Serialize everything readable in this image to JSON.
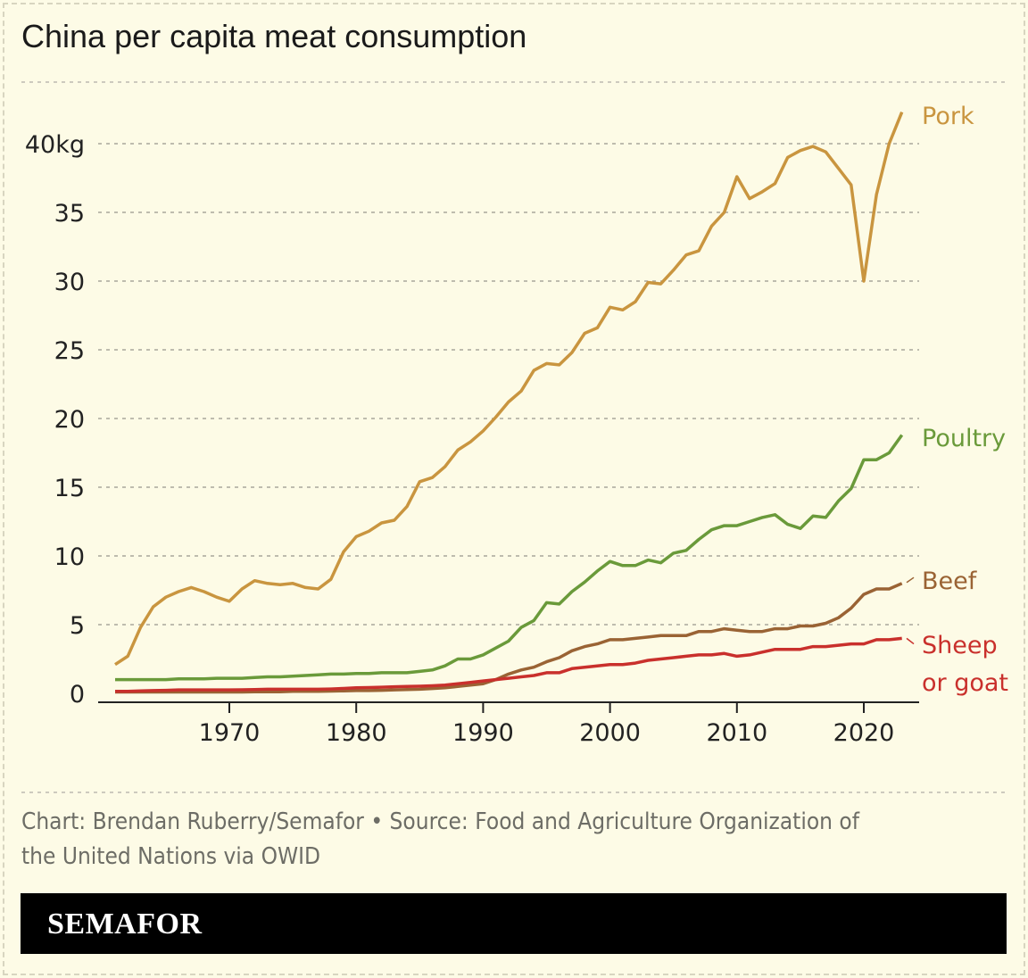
{
  "title": "China per capita meat consumption",
  "credit": "Chart: Brendan Ruberry/Semafor • Source: Food and Agriculture Organization of the United Nations via OWID",
  "brand": "SEMAFOR",
  "chart_data": {
    "type": "line",
    "title": "China per capita meat consumption",
    "xlim": [
      1961,
      2023
    ],
    "ylim": [
      0,
      40
    ],
    "x_ticks": [
      1970,
      1980,
      1990,
      2000,
      2010,
      2020
    ],
    "y_ticks": [
      0,
      5,
      10,
      15,
      20,
      25,
      30,
      35,
      40
    ],
    "y_tick_labels": [
      "0",
      "5",
      "10",
      "15",
      "20",
      "25",
      "30",
      "35",
      "40kg"
    ],
    "grid": true,
    "x_start": 1961,
    "series": [
      {
        "name": "Pork",
        "color": "#c9953f",
        "values": [
          2.1,
          2.7,
          4.8,
          6.3,
          7.0,
          7.4,
          7.7,
          7.4,
          7.0,
          6.7,
          7.6,
          8.2,
          8.0,
          7.9,
          8.0,
          7.7,
          7.6,
          8.3,
          10.3,
          11.4,
          11.8,
          12.4,
          12.6,
          13.6,
          15.4,
          15.7,
          16.5,
          17.7,
          18.3,
          19.1,
          20.1,
          21.2,
          22.0,
          23.5,
          24.0,
          23.9,
          24.8,
          26.2,
          26.6,
          28.1,
          27.9,
          28.5,
          29.9,
          29.8,
          30.8,
          31.9,
          32.2,
          34.0,
          35.0,
          37.6,
          36.0,
          36.5,
          37.1,
          39.0,
          39.5,
          39.8,
          39.4,
          38.2,
          37.0,
          30.0,
          36.3,
          40.0,
          42.3
        ]
      },
      {
        "name": "Poultry",
        "color": "#6a9a3a",
        "values": [
          1.0,
          1.0,
          1.0,
          1.0,
          1.0,
          1.05,
          1.05,
          1.05,
          1.1,
          1.1,
          1.1,
          1.15,
          1.2,
          1.2,
          1.25,
          1.3,
          1.35,
          1.4,
          1.4,
          1.45,
          1.45,
          1.5,
          1.5,
          1.5,
          1.6,
          1.7,
          2.0,
          2.5,
          2.5,
          2.8,
          3.3,
          3.8,
          4.8,
          5.3,
          6.6,
          6.5,
          7.4,
          8.1,
          8.9,
          9.6,
          9.3,
          9.3,
          9.7,
          9.5,
          10.2,
          10.4,
          11.2,
          11.9,
          12.2,
          12.2,
          12.5,
          12.8,
          13.0,
          12.3,
          12.0,
          12.9,
          12.8,
          14.0,
          14.9,
          17.0,
          17.0,
          17.5,
          18.8
        ]
      },
      {
        "name": "Beef",
        "color": "#9a6334",
        "values": [
          0.1,
          0.1,
          0.1,
          0.1,
          0.1,
          0.1,
          0.1,
          0.1,
          0.1,
          0.1,
          0.1,
          0.12,
          0.12,
          0.12,
          0.14,
          0.14,
          0.15,
          0.16,
          0.18,
          0.2,
          0.2,
          0.22,
          0.25,
          0.28,
          0.3,
          0.35,
          0.4,
          0.5,
          0.6,
          0.7,
          1.0,
          1.4,
          1.7,
          1.9,
          2.3,
          2.6,
          3.1,
          3.4,
          3.6,
          3.9,
          3.9,
          4.0,
          4.1,
          4.2,
          4.2,
          4.2,
          4.5,
          4.5,
          4.7,
          4.6,
          4.5,
          4.5,
          4.7,
          4.7,
          4.9,
          4.9,
          5.1,
          5.5,
          6.2,
          7.2,
          7.6,
          7.6,
          8.0
        ]
      },
      {
        "name": "Sheep or goat",
        "color": "#c9302c",
        "values": [
          0.15,
          0.15,
          0.18,
          0.2,
          0.22,
          0.25,
          0.25,
          0.25,
          0.25,
          0.25,
          0.26,
          0.28,
          0.3,
          0.3,
          0.3,
          0.3,
          0.3,
          0.32,
          0.36,
          0.4,
          0.42,
          0.45,
          0.48,
          0.5,
          0.52,
          0.55,
          0.6,
          0.7,
          0.8,
          0.9,
          1.0,
          1.1,
          1.2,
          1.3,
          1.5,
          1.5,
          1.8,
          1.9,
          2.0,
          2.1,
          2.1,
          2.2,
          2.4,
          2.5,
          2.6,
          2.7,
          2.8,
          2.8,
          2.9,
          2.7,
          2.8,
          3.0,
          3.2,
          3.2,
          3.2,
          3.4,
          3.4,
          3.5,
          3.6,
          3.6,
          3.9,
          3.9,
          4.0
        ]
      }
    ],
    "series_labels": [
      "Pork",
      "Poultry",
      "Beef",
      "Sheep",
      "or goat"
    ]
  }
}
